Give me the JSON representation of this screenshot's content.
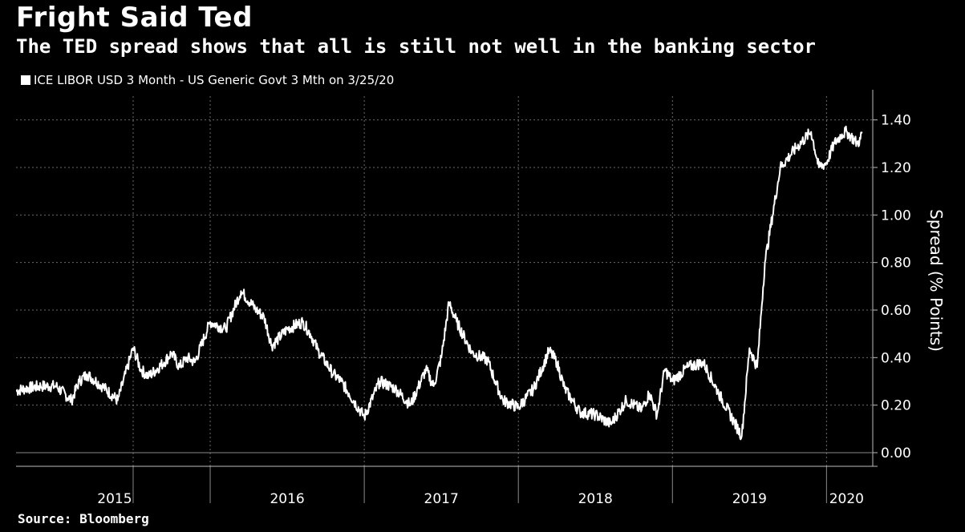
{
  "chart_data": {
    "type": "line",
    "title": "Fright Said Ted",
    "subtitle": "The TED spread shows that all is still not well in the banking sector",
    "legend": "ICE LIBOR USD 3 Month - US Generic Govt 3 Mth on 3/25/20",
    "ylabel": "Spread (% Points)",
    "source": "Source: Bloomberg",
    "ylim": [
      0,
      1.5
    ],
    "yticks": [
      0,
      0.2,
      0.4,
      0.6,
      0.8,
      1.0,
      1.2,
      1.4
    ],
    "ytick_labels": [
      "0.00",
      "0.20",
      "0.40",
      "0.60",
      "0.80",
      "1.00",
      "1.20",
      "1.40"
    ],
    "xlim": [
      2014.74,
      2020.3
    ],
    "year_boundaries": [
      2015.5,
      2016.0,
      2017.0,
      2018.0,
      2019.0,
      2020.0
    ],
    "categories": [
      "2015",
      "2016",
      "2017",
      "2018",
      "2019",
      "2020"
    ],
    "category_centers": [
      2015.38,
      2016.5,
      2017.5,
      2018.5,
      2019.5,
      2020.13
    ],
    "series": [
      {
        "name": "ICE LIBOR USD 3 Month - US Generic Govt 3 Mth",
        "x": [
          2014.74,
          2014.8,
          2014.9,
          2015.0,
          2015.1,
          2015.15,
          2015.2,
          2015.3,
          2015.4,
          2015.5,
          2015.55,
          2015.6,
          2015.7,
          2015.75,
          2015.8,
          2015.85,
          2015.9,
          2016.0,
          2016.1,
          2016.2,
          2016.3,
          2016.35,
          2016.4,
          2016.5,
          2016.6,
          2016.65,
          2016.7,
          2016.75,
          2016.8,
          2016.85,
          2016.9,
          2017.0,
          2017.1,
          2017.2,
          2017.3,
          2017.4,
          2017.45,
          2017.5,
          2017.55,
          2017.6,
          2017.7,
          2017.8,
          2017.85,
          2017.9,
          2018.0,
          2018.1,
          2018.2,
          2018.25,
          2018.3,
          2018.35,
          2018.4,
          2018.5,
          2018.6,
          2018.7,
          2018.8,
          2018.85,
          2018.9,
          2018.95,
          2019.0,
          2019.1,
          2019.2,
          2019.3,
          2019.4,
          2019.45,
          2019.5,
          2019.55,
          2019.6,
          2019.7,
          2019.8,
          2019.9,
          2019.95,
          2020.0,
          2020.05,
          2020.1,
          2020.13,
          2020.16,
          2020.2,
          2020.22,
          2020.23
        ],
        "values": [
          0.26,
          0.27,
          0.28,
          0.28,
          0.22,
          0.3,
          0.33,
          0.28,
          0.22,
          0.44,
          0.35,
          0.32,
          0.38,
          0.42,
          0.36,
          0.4,
          0.38,
          0.55,
          0.52,
          0.68,
          0.6,
          0.57,
          0.45,
          0.52,
          0.55,
          0.5,
          0.43,
          0.38,
          0.33,
          0.3,
          0.25,
          0.15,
          0.3,
          0.27,
          0.2,
          0.35,
          0.28,
          0.4,
          0.63,
          0.55,
          0.42,
          0.39,
          0.3,
          0.22,
          0.19,
          0.27,
          0.43,
          0.38,
          0.27,
          0.22,
          0.17,
          0.16,
          0.12,
          0.22,
          0.18,
          0.25,
          0.16,
          0.35,
          0.3,
          0.36,
          0.38,
          0.25,
          0.13,
          0.07,
          0.44,
          0.36,
          0.8,
          1.2,
          1.28,
          1.35,
          1.2,
          1.22,
          1.3,
          1.34,
          1.35,
          1.33,
          1.3,
          1.32,
          1.35
        ]
      }
    ]
  }
}
